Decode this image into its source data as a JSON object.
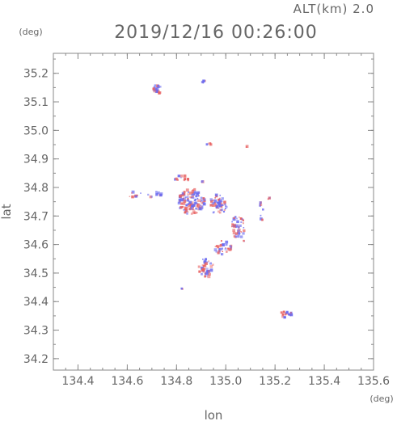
{
  "chart_data": {
    "type": "scatter",
    "title": "2019/12/16 00:26:00",
    "altitude_label": "ALT(km) 2.0",
    "xlabel": "lon",
    "ylabel": "lat",
    "x_unit": "(deg)",
    "y_unit": "(deg)",
    "xlim": [
      134.3,
      135.6
    ],
    "ylim": [
      34.16,
      35.27
    ],
    "x_ticks": [
      "134.4",
      "134.6",
      "134.8",
      "135.0",
      "135.2",
      "135.4",
      "135.6"
    ],
    "y_ticks": [
      "34.2",
      "34.3",
      "34.4",
      "34.5",
      "34.6",
      "34.7",
      "34.8",
      "34.9",
      "35.0",
      "35.1",
      "35.2"
    ],
    "grid": false,
    "colors": {
      "positive": "#e86060",
      "negative": "#6a6af0",
      "axis": "#888888",
      "text": "#666666"
    },
    "clusters": [
      {
        "lon": 134.725,
        "lat": 35.145,
        "rx": 0.018,
        "ry": 0.018,
        "n": 22
      },
      {
        "lon": 134.915,
        "lat": 35.17,
        "rx": 0.012,
        "ry": 0.004,
        "n": 5
      },
      {
        "lon": 134.935,
        "lat": 34.952,
        "rx": 0.012,
        "ry": 0.004,
        "n": 6
      },
      {
        "lon": 135.085,
        "lat": 34.945,
        "rx": 0.003,
        "ry": 0.004,
        "n": 2
      },
      {
        "lon": 134.82,
        "lat": 34.83,
        "rx": 0.03,
        "ry": 0.012,
        "n": 12
      },
      {
        "lon": 134.63,
        "lat": 34.775,
        "rx": 0.03,
        "ry": 0.01,
        "n": 10
      },
      {
        "lon": 134.71,
        "lat": 34.775,
        "rx": 0.03,
        "ry": 0.012,
        "n": 10
      },
      {
        "lon": 134.86,
        "lat": 34.75,
        "rx": 0.055,
        "ry": 0.045,
        "n": 140
      },
      {
        "lon": 134.97,
        "lat": 34.74,
        "rx": 0.035,
        "ry": 0.035,
        "n": 60
      },
      {
        "lon": 135.05,
        "lat": 34.66,
        "rx": 0.03,
        "ry": 0.04,
        "n": 45
      },
      {
        "lon": 134.99,
        "lat": 34.59,
        "rx": 0.035,
        "ry": 0.025,
        "n": 35
      },
      {
        "lon": 134.92,
        "lat": 34.52,
        "rx": 0.03,
        "ry": 0.035,
        "n": 40
      },
      {
        "lon": 134.905,
        "lat": 34.82,
        "rx": 0.006,
        "ry": 0.006,
        "n": 3
      },
      {
        "lon": 135.145,
        "lat": 34.72,
        "rx": 0.008,
        "ry": 0.04,
        "n": 10
      },
      {
        "lon": 135.175,
        "lat": 34.76,
        "rx": 0.006,
        "ry": 0.008,
        "n": 4
      },
      {
        "lon": 135.075,
        "lat": 34.615,
        "rx": 0.004,
        "ry": 0.005,
        "n": 2
      },
      {
        "lon": 134.82,
        "lat": 34.445,
        "rx": 0.004,
        "ry": 0.004,
        "n": 2
      },
      {
        "lon": 135.245,
        "lat": 34.355,
        "rx": 0.025,
        "ry": 0.012,
        "n": 18
      }
    ]
  }
}
